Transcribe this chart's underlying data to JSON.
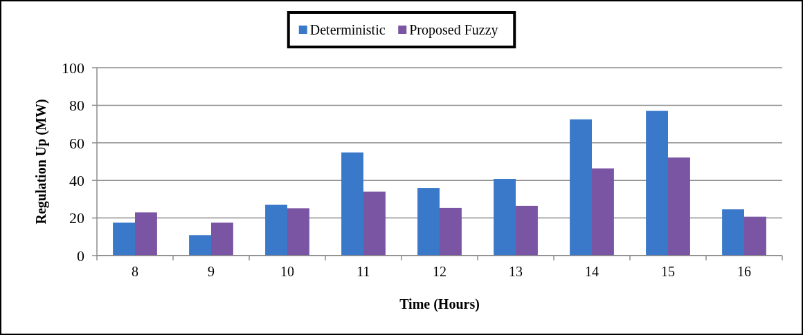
{
  "chart_data": {
    "type": "bar",
    "xlabel": "Time (Hours)",
    "ylabel": "Regulation Up (MW)",
    "categories": [
      "8",
      "9",
      "10",
      "11",
      "12",
      "13",
      "14",
      "15",
      "16"
    ],
    "series": [
      {
        "name": "Deterministic",
        "color": "#3a78c9",
        "values": [
          17.5,
          10.9,
          27,
          54.9,
          36,
          40.8,
          72.5,
          77,
          24.6
        ]
      },
      {
        "name": "Proposed Fuzzy",
        "color": "#7a55a3",
        "values": [
          23,
          17.5,
          25.2,
          34,
          25.4,
          26.5,
          46.4,
          52.2,
          20.7
        ]
      }
    ],
    "ylim": [
      0,
      100
    ],
    "yticks": [
      0,
      20,
      40,
      60,
      80,
      100
    ],
    "grid": "y",
    "legend": "top"
  }
}
